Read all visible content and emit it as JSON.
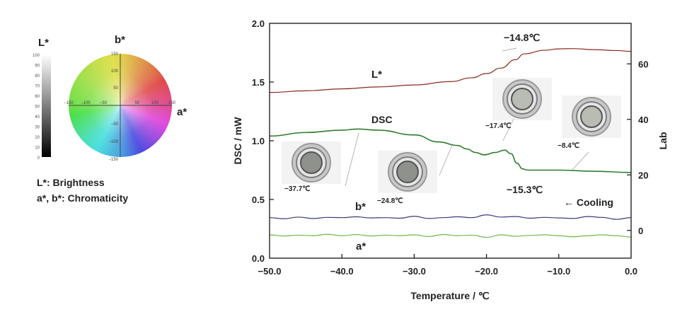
{
  "colorspace": {
    "l_title": "L*",
    "b_title": "b*",
    "a_title": "a*",
    "l_scale_ticks": [
      "100",
      "90",
      "80",
      "70",
      "60",
      "50",
      "40",
      "30",
      "20",
      "10",
      "0"
    ],
    "a_ticks": [
      "−150",
      "−100",
      "−50",
      "50",
      "100",
      "150"
    ],
    "b_ticks": [
      "150",
      "100",
      "50",
      "−50",
      "−100",
      "−150"
    ],
    "legend_lines": [
      "L*: Brightness",
      "a*, b*: Chromaticity"
    ]
  },
  "chart_data": {
    "type": "line",
    "title": "",
    "xlabel": "Temperature / ℃",
    "ylabel": "DSC / mW",
    "y2label": "Lab",
    "xlim": [
      -50,
      0
    ],
    "ylim": [
      0,
      2.0
    ],
    "y2lim": [
      -10,
      74.6
    ],
    "x_ticks": [
      "−50.0",
      "−40.0",
      "−30.0",
      "−20.0",
      "−10.0",
      "0.0"
    ],
    "x_tick_values": [
      -50,
      -40,
      -30,
      -20,
      -10,
      0
    ],
    "y_ticks": [
      "0.0",
      "0.5",
      "1.0",
      "1.5",
      "2.0"
    ],
    "y_tick_values": [
      0,
      0.5,
      1.0,
      1.5,
      2.0
    ],
    "y2_ticks": [
      "0",
      "20",
      "40",
      "60"
    ],
    "y2_tick_values": [
      0,
      20,
      40,
      60
    ],
    "grid": false,
    "series": [
      {
        "name": "L*",
        "axis": "right",
        "color": "#8b2a1e",
        "x": [
          -50,
          -45,
          -40,
          -35,
          -30,
          -25,
          -22,
          -20,
          -18,
          -16,
          -14.8,
          -12,
          -10,
          -8,
          -5,
          -2,
          0
        ],
        "y": [
          49.7,
          50.3,
          51.0,
          51.7,
          52.4,
          53.6,
          55.0,
          56.5,
          58.5,
          61.5,
          63.6,
          64.9,
          65.4,
          65.5,
          65.1,
          64.8,
          64.5
        ]
      },
      {
        "name": "DSC",
        "axis": "left",
        "color": "#2e7d2e",
        "x": [
          -50,
          -45,
          -40,
          -37.9,
          -35,
          -30,
          -26.6,
          -24,
          -22.7,
          -21.5,
          -20.3,
          -18.8,
          -17.5,
          -16.6,
          -15.8,
          -15.0,
          -14.3,
          -10,
          -5,
          0
        ],
        "y": [
          1.04,
          1.07,
          1.09,
          1.1,
          1.09,
          1.05,
          0.99,
          0.96,
          0.93,
          0.9,
          0.88,
          0.9,
          0.92,
          0.89,
          0.81,
          0.76,
          0.75,
          0.75,
          0.74,
          0.73
        ]
      },
      {
        "name": "b*",
        "axis": "right",
        "color": "#3b3b7a",
        "x": [
          -50,
          -48,
          -46,
          -44,
          -42,
          -40,
          -38,
          -36,
          -34,
          -32,
          -30,
          -28,
          -26,
          -24,
          -22,
          -20,
          -18,
          -16,
          -14,
          -12,
          -10,
          -8,
          -6,
          -4,
          -2,
          0
        ],
        "y": [
          4.6,
          4.2,
          4.8,
          4.3,
          4.7,
          4.6,
          4.9,
          4.5,
          4.6,
          4.4,
          5.1,
          4.3,
          4.6,
          4.9,
          4.6,
          5.6,
          4.8,
          5.0,
          4.4,
          4.7,
          4.5,
          4.3,
          5.0,
          4.7,
          4.0,
          4.6
        ]
      },
      {
        "name": "a*",
        "axis": "right",
        "color": "#6fba4a",
        "x": [
          -50,
          -48,
          -46,
          -44,
          -42,
          -40,
          -38,
          -36,
          -34,
          -32,
          -30,
          -28,
          -26,
          -24,
          -22,
          -20,
          -18,
          -16,
          -14,
          -12,
          -10,
          -8,
          -6,
          -4,
          -2,
          0
        ],
        "y": [
          -1.6,
          -2.0,
          -1.7,
          -1.9,
          -1.4,
          -1.9,
          -1.5,
          -2.0,
          -1.7,
          -1.9,
          -1.6,
          -2.2,
          -1.5,
          -1.9,
          -1.7,
          -2.5,
          -1.6,
          -2.1,
          -1.8,
          -1.6,
          -1.9,
          -2.3,
          -1.9,
          -1.6,
          -1.9,
          -2.4
        ]
      }
    ],
    "series_labels": [
      "L*",
      "DSC",
      "b*",
      "a*"
    ],
    "annotations": [
      {
        "text": "−14.8℃",
        "x": -14.8,
        "kind": "large"
      },
      {
        "text": "−15.3℃",
        "x": -15.3,
        "kind": "large"
      },
      {
        "text": "← Cooling",
        "kind": "large"
      },
      {
        "text": "−37.7℃",
        "x": -37.7,
        "kind": "photo"
      },
      {
        "text": "−24.8℃",
        "x": -24.8,
        "kind": "photo"
      },
      {
        "text": "−17.4℃",
        "x": -17.4,
        "kind": "photo"
      },
      {
        "text": "−8.4℃",
        "x": -8.4,
        "kind": "photo"
      }
    ]
  }
}
